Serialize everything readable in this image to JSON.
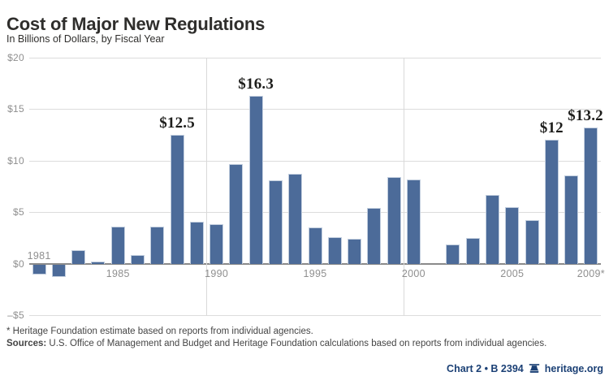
{
  "page": {
    "title": "Cost of Major New Regulations",
    "subtitle": "In Billions of Dollars, by Fiscal Year",
    "footnote1": "* Heritage Foundation estimate based on reports from individual agencies.",
    "footnote2_label": "Sources:",
    "footnote2_text": " U.S. Office of Management and Budget and Heritage Foundation calculations based on reports from individual agencies.",
    "footer": {
      "chart_ref": "Chart 2 • B 2394",
      "site": "heritage.org"
    }
  },
  "chart_data": {
    "type": "bar",
    "title": "Cost of Major New Regulations",
    "subtitle": "In Billions of Dollars, by Fiscal Year",
    "ylim": [
      -5,
      20
    ],
    "grid": true,
    "legend": false,
    "bar_color": "#4c6b99",
    "categories": [
      1981,
      1982,
      1983,
      1984,
      1985,
      1986,
      1987,
      1988,
      1989,
      1990,
      1991,
      1992,
      1993,
      1994,
      1995,
      1996,
      1997,
      1998,
      1999,
      2000,
      2001,
      2002,
      2003,
      2004,
      2005,
      2006,
      2007,
      2008,
      2009
    ],
    "values": [
      -1.0,
      -1.2,
      1.3,
      0.2,
      3.6,
      0.8,
      3.6,
      12.5,
      4.1,
      3.8,
      9.7,
      16.3,
      8.1,
      8.7,
      3.5,
      2.6,
      2.4,
      5.4,
      8.4,
      8.2,
      0,
      1.9,
      2.5,
      6.7,
      5.5,
      4.2,
      12.0,
      8.6,
      13.2
    ],
    "yticks": [
      {
        "value": 20,
        "label": "$20"
      },
      {
        "value": 15,
        "label": "$15"
      },
      {
        "value": 10,
        "label": "$10"
      },
      {
        "value": 5,
        "label": "$5"
      },
      {
        "value": 0,
        "label": "$0"
      },
      {
        "value": -5,
        "label": "–$5"
      }
    ],
    "xticks": [
      {
        "year": 1981,
        "label": "1981",
        "above_axis": true
      },
      {
        "year": 1985,
        "label": "1985",
        "above_axis": false
      },
      {
        "year": 1990,
        "label": "1990",
        "above_axis": false
      },
      {
        "year": 1995,
        "label": "1995",
        "above_axis": false
      },
      {
        "year": 2000,
        "label": "2000",
        "above_axis": false
      },
      {
        "year": 2005,
        "label": "2005",
        "above_axis": false
      },
      {
        "year": 2009,
        "label": "2009*",
        "above_axis": false
      }
    ],
    "annotations": [
      {
        "year": 1988,
        "label": "$12.5"
      },
      {
        "year": 1992,
        "label": "$16.3"
      },
      {
        "year": 2007,
        "label": "$12"
      },
      {
        "year": 2009,
        "label": "$13.2"
      }
    ],
    "decade_separators": [
      1990,
      2000
    ],
    "colors": {
      "bar": "#4c6b99",
      "bar_edge": "#c2cede",
      "gridline": "#dcdcdc",
      "zero_axis": "#8a8a8a",
      "axis_text": "#8f8f8f",
      "title_text": "#2f2e2c",
      "brand_blue": "#1b4075"
    }
  }
}
